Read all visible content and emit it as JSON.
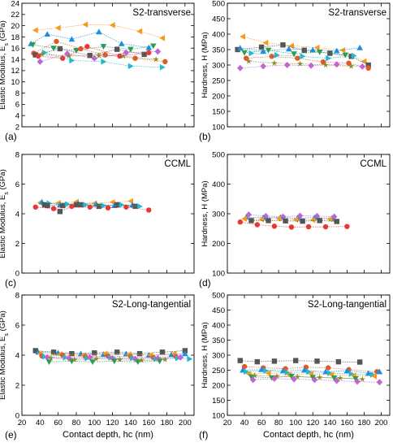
{
  "figure": {
    "xlabel": "Contact depth, hc (nm)",
    "x_ticks": [
      "20",
      "40",
      "60",
      "80",
      "100",
      "120",
      "140",
      "160",
      "180",
      "200"
    ]
  },
  "chart_data": [
    {
      "type": "line",
      "panel": "a",
      "label": "(a)",
      "title": "S2-transverse",
      "ylabel": "Elastic Modulus, Es (GPa)",
      "yunit": "Es",
      "xlim": [
        20,
        210
      ],
      "ylim": [
        2,
        24
      ],
      "y_ticks": [
        "2",
        "4",
        "6",
        "8",
        "10",
        "12",
        "14",
        "16",
        "18",
        "20",
        "22",
        "24"
      ],
      "show_xticks": false,
      "series": [
        {
          "color": "#f59a1c",
          "marker": "tri-left",
          "x": [
            35,
            60,
            90,
            120,
            150,
            175
          ],
          "y": [
            19.2,
            19.6,
            20.2,
            20.1,
            19.0,
            17.8
          ]
        },
        {
          "color": "#1c8ee0",
          "marker": "tri-up",
          "x": [
            30,
            48,
            75,
            105,
            130,
            160
          ],
          "y": [
            16.8,
            18.5,
            17.6,
            18.9,
            16.8,
            16.1
          ]
        },
        {
          "color": "#2a9d54",
          "marker": "tri-down",
          "x": [
            32,
            55,
            80,
            110,
            140,
            165
          ],
          "y": [
            16.6,
            16.0,
            15.6,
            16.3,
            15.8,
            16.4
          ]
        },
        {
          "color": "#e05a2a",
          "marker": "circle",
          "x": [
            33,
            58,
            85,
            112,
            145,
            178
          ],
          "y": [
            15.1,
            17.2,
            15.9,
            14.8,
            14.2,
            13.6
          ]
        },
        {
          "color": "#555555",
          "marker": "square",
          "x": [
            35,
            62,
            95,
            125,
            155
          ],
          "y": [
            14.8,
            15.9,
            14.7,
            15.8,
            14.9
          ]
        },
        {
          "color": "#e53935",
          "marker": "circle",
          "x": [
            38,
            65,
            92,
            128,
            160
          ],
          "y": [
            14.6,
            14.2,
            16.3,
            14.6,
            15.2
          ]
        },
        {
          "color": "#c264d6",
          "marker": "diamond",
          "x": [
            40,
            70,
            100,
            135,
            170
          ],
          "y": [
            13.6,
            15.0,
            14.2,
            15.2,
            15.4
          ]
        },
        {
          "color": "#22b8cf",
          "marker": "tri-right",
          "x": [
            45,
            75,
            110,
            140,
            175
          ],
          "y": [
            15.2,
            13.8,
            13.6,
            12.8,
            12.6
          ]
        },
        {
          "color": "#8a8a2a",
          "marker": "star",
          "x": [
            42,
            72,
            105,
            132,
            168
          ],
          "y": [
            14.9,
            14.6,
            14.7,
            14.6,
            14.0
          ]
        }
      ]
    },
    {
      "type": "line",
      "panel": "b",
      "label": "(b)",
      "title": "S2-transverse",
      "ylabel": "Hardness, H (MPa)",
      "yunit": "",
      "xlim": [
        20,
        210
      ],
      "ylim": [
        100,
        500
      ],
      "y_ticks": [
        "100",
        "150",
        "200",
        "250",
        "300",
        "350",
        "400",
        "450",
        "500"
      ],
      "show_xticks": false,
      "series": [
        {
          "color": "#f59a1c",
          "marker": "tri-left",
          "x": [
            38,
            65,
            95,
            125,
            155,
            180
          ],
          "y": [
            392,
            372,
            362,
            356,
            348,
            312
          ]
        },
        {
          "color": "#555555",
          "marker": "square",
          "x": [
            32,
            60,
            85,
            110,
            140,
            165,
            185
          ],
          "y": [
            350,
            358,
            365,
            348,
            338,
            328,
            300
          ]
        },
        {
          "color": "#1c8ee0",
          "marker": "tri-up",
          "x": [
            35,
            62,
            92,
            120,
            148,
            175
          ],
          "y": [
            355,
            345,
            352,
            349,
            346,
            356
          ]
        },
        {
          "color": "#2a9d54",
          "marker": "tri-down",
          "x": [
            40,
            68,
            98,
            128,
            158
          ],
          "y": [
            340,
            348,
            336,
            342,
            332
          ]
        },
        {
          "color": "#e05a2a",
          "marker": "circle",
          "x": [
            42,
            72,
            102,
            132,
            162,
            185
          ],
          "y": [
            322,
            328,
            322,
            310,
            306,
            290
          ]
        },
        {
          "color": "#c264d6",
          "marker": "diamond",
          "x": [
            35,
            62,
            90,
            118,
            148,
            178
          ],
          "y": [
            290,
            296,
            300,
            298,
            302,
            295
          ]
        },
        {
          "color": "#8a8a2a",
          "marker": "star",
          "x": [
            45,
            75,
            105,
            135,
            165
          ],
          "y": [
            312,
            306,
            304,
            300,
            296
          ]
        },
        {
          "color": "#22b8cf",
          "marker": "tri-right",
          "x": [
            48,
            78,
            108,
            138,
            168
          ],
          "y": [
            338,
            332,
            328,
            322,
            330
          ]
        }
      ]
    },
    {
      "type": "line",
      "panel": "c",
      "label": "(c)",
      "title": "CCML",
      "ylabel": "Elastic Modulus, Es (GPa)",
      "yunit": "Es",
      "xlim": [
        20,
        210
      ],
      "ylim": [
        0,
        8
      ],
      "y_ticks": [
        "0",
        "2",
        "4",
        "6",
        "8"
      ],
      "show_xticks": false,
      "series": [
        {
          "color": "#f59a1c",
          "marker": "tri-left",
          "x": [
            40,
            60,
            80,
            100,
            120,
            140
          ],
          "y": [
            4.75,
            4.72,
            4.8,
            4.7,
            4.78,
            4.85
          ]
        },
        {
          "color": "#1c8ee0",
          "marker": "tri-up",
          "x": [
            42,
            62,
            82,
            102,
            122,
            142
          ],
          "y": [
            4.8,
            4.6,
            4.7,
            4.65,
            4.55,
            4.6
          ]
        },
        {
          "color": "#555555",
          "marker": "square",
          "x": [
            45,
            65,
            85,
            105,
            125,
            145
          ],
          "y": [
            4.6,
            4.55,
            4.6,
            4.5,
            4.6,
            4.5
          ]
        },
        {
          "color": "#22b8cf",
          "marker": "tri-right",
          "x": [
            50,
            70,
            90,
            110,
            130,
            150
          ],
          "y": [
            4.7,
            4.65,
            4.6,
            4.55,
            4.6,
            4.5
          ]
        },
        {
          "color": "#555555",
          "marker": "square",
          "x": [
            48,
            62,
            80
          ],
          "y": [
            4.55,
            4.15,
            4.6
          ]
        },
        {
          "color": "#e53935",
          "marker": "circle",
          "x": [
            35,
            55,
            75,
            95,
            115,
            135,
            160
          ],
          "y": [
            4.45,
            4.35,
            4.5,
            4.45,
            4.4,
            4.45,
            4.25
          ]
        }
      ]
    },
    {
      "type": "line",
      "panel": "d",
      "label": "(d)",
      "title": "CCML",
      "ylabel": "Hardness, H (MPa)",
      "yunit": "",
      "xlim": [
        20,
        210
      ],
      "ylim": [
        100,
        500
      ],
      "y_ticks": [
        "100",
        "200",
        "300",
        "400",
        "500"
      ],
      "show_xticks": false,
      "series": [
        {
          "color": "#c264d6",
          "marker": "diamond",
          "x": [
            45,
            65,
            85,
            105,
            125,
            145
          ],
          "y": [
            297,
            292,
            290,
            293,
            292,
            290
          ]
        },
        {
          "color": "#1c8ee0",
          "marker": "tri-up",
          "x": [
            42,
            62,
            82,
            102,
            122,
            142
          ],
          "y": [
            288,
            287,
            288,
            285,
            287,
            284
          ]
        },
        {
          "color": "#f59a1c",
          "marker": "tri-left",
          "x": [
            40,
            60,
            80,
            100,
            120,
            140
          ],
          "y": [
            283,
            281,
            284,
            280,
            279,
            282
          ]
        },
        {
          "color": "#555555",
          "marker": "square",
          "x": [
            48,
            68,
            88,
            108,
            128,
            148
          ],
          "y": [
            277,
            277,
            276,
            275,
            277,
            274
          ]
        },
        {
          "color": "#e53935",
          "marker": "circle",
          "x": [
            35,
            55,
            75,
            95,
            115,
            135,
            160
          ],
          "y": [
            272,
            263,
            258,
            255,
            256,
            256,
            257
          ]
        }
      ]
    },
    {
      "type": "line",
      "panel": "e",
      "label": "(e)",
      "title": "S2-Long-tangential",
      "ylabel": "Elastic Modulus, Es (GPa)",
      "yunit": "Es",
      "xlim": [
        20,
        210
      ],
      "ylim": [
        0,
        8
      ],
      "y_ticks": [
        "0",
        "2",
        "4",
        "6",
        "8"
      ],
      "show_xticks": true,
      "series": [
        {
          "color": "#555555",
          "marker": "square",
          "x": [
            35,
            55,
            75,
            100,
            125,
            150,
            175,
            200
          ],
          "y": [
            4.3,
            4.2,
            4.1,
            4.15,
            4.2,
            4.1,
            4.2,
            4.3
          ]
        },
        {
          "color": "#1c8ee0",
          "marker": "tri-up",
          "x": [
            38,
            60,
            85,
            110,
            135,
            160,
            185,
            200
          ],
          "y": [
            4.2,
            4.15,
            4.1,
            4.05,
            4.1,
            4.0,
            4.05,
            4.1
          ]
        },
        {
          "color": "#f59a1c",
          "marker": "tri-left",
          "x": [
            40,
            62,
            88,
            112,
            138,
            162,
            188
          ],
          "y": [
            4.1,
            4.05,
            4.0,
            4.1,
            4.05,
            4.0,
            4.1
          ]
        },
        {
          "color": "#e05a2a",
          "marker": "circle",
          "x": [
            42,
            65,
            90,
            115,
            140,
            165,
            190
          ],
          "y": [
            3.95,
            4.0,
            3.9,
            3.95,
            3.9,
            3.85,
            3.9
          ]
        },
        {
          "color": "#22b8cf",
          "marker": "tri-right",
          "x": [
            45,
            68,
            92,
            118,
            142,
            168,
            192,
            205
          ],
          "y": [
            3.9,
            3.85,
            3.8,
            3.85,
            3.8,
            3.75,
            3.8,
            3.75
          ]
        },
        {
          "color": "#c264d6",
          "marker": "diamond",
          "x": [
            48,
            72,
            95,
            120,
            145,
            170,
            195
          ],
          "y": [
            3.85,
            3.8,
            3.85,
            3.8,
            3.75,
            3.8,
            3.85
          ]
        },
        {
          "color": "#2a9d54",
          "marker": "tri-down",
          "x": [
            50,
            75,
            98,
            122,
            148,
            172
          ],
          "y": [
            3.55,
            3.6,
            3.55,
            3.6,
            3.55,
            3.6
          ]
        },
        {
          "color": "#8a8a2a",
          "marker": "star",
          "x": [
            52,
            78,
            102,
            128,
            152,
            178
          ],
          "y": [
            3.8,
            3.7,
            3.75,
            3.7,
            3.65,
            3.7
          ]
        }
      ]
    },
    {
      "type": "line",
      "panel": "f",
      "label": "(f)",
      "title": "S2-Long-tangential",
      "ylabel": "Hardness, H (MPa)",
      "yunit": "",
      "xlim": [
        20,
        210
      ],
      "ylim": [
        100,
        500
      ],
      "y_ticks": [
        "100",
        "150",
        "200",
        "250",
        "300",
        "350",
        "400",
        "450",
        "500"
      ],
      "show_xticks": true,
      "series": [
        {
          "color": "#555555",
          "marker": "square",
          "x": [
            35,
            55,
            75,
            100,
            125,
            150,
            175
          ],
          "y": [
            282,
            278,
            280,
            282,
            280,
            278,
            277
          ]
        },
        {
          "color": "#e05a2a",
          "marker": "circle",
          "x": [
            40,
            62,
            88,
            112,
            138,
            162,
            195
          ],
          "y": [
            262,
            258,
            255,
            260,
            258,
            252,
            245
          ]
        },
        {
          "color": "#1c8ee0",
          "marker": "tri-up",
          "x": [
            38,
            60,
            85,
            110,
            135,
            160,
            185,
            198
          ],
          "y": [
            250,
            252,
            248,
            250,
            245,
            248,
            240,
            245
          ]
        },
        {
          "color": "#22b8cf",
          "marker": "tri-right",
          "x": [
            42,
            65,
            90,
            115,
            140,
            165,
            190
          ],
          "y": [
            245,
            248,
            242,
            245,
            240,
            238,
            235
          ]
        },
        {
          "color": "#f59a1c",
          "marker": "tri-left",
          "x": [
            45,
            68,
            92,
            118,
            142,
            168,
            192
          ],
          "y": [
            238,
            240,
            236,
            238,
            235,
            232,
            230
          ]
        },
        {
          "color": "#2a9d54",
          "marker": "tri-down",
          "x": [
            48,
            72,
            95,
            120,
            145,
            170
          ],
          "y": [
            228,
            225,
            230,
            226,
            224,
            222
          ]
        },
        {
          "color": "#c264d6",
          "marker": "diamond",
          "x": [
            50,
            75,
            98,
            122,
            148,
            172,
            198
          ],
          "y": [
            218,
            222,
            220,
            218,
            215,
            212,
            210
          ]
        },
        {
          "color": "#8a8a2a",
          "marker": "star",
          "x": [
            52,
            78,
            102,
            128,
            152,
            178
          ],
          "y": [
            232,
            230,
            228,
            226,
            224,
            220
          ]
        }
      ]
    }
  ]
}
